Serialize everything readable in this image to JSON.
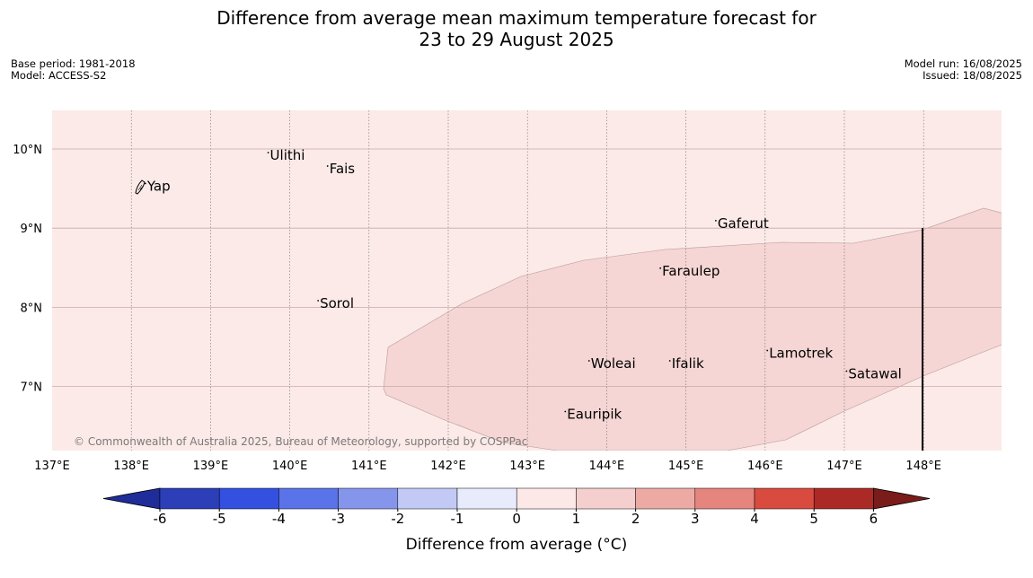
{
  "header": {
    "title_line1": "Difference from average mean maximum temperature forecast for",
    "title_line2": "23 to 29 August 2025"
  },
  "meta_left": {
    "base_period": "Base period: 1981-2018",
    "model": "Model: ACCESS-S2"
  },
  "meta_right": {
    "model_run": "Model run: 16/08/2025",
    "issued": "Issued: 18/08/2025"
  },
  "map": {
    "x_ticks": [
      "137°E",
      "138°E",
      "139°E",
      "140°E",
      "141°E",
      "142°E",
      "143°E",
      "144°E",
      "145°E",
      "146°E",
      "147°E",
      "148°E"
    ],
    "y_ticks": [
      "10°N",
      "9°N",
      "8°N",
      "7°N"
    ],
    "places": [
      {
        "name": "Yap",
        "lon": 138.2,
        "lat": 9.53
      },
      {
        "name": "Ulithi",
        "lon": 139.75,
        "lat": 9.92
      },
      {
        "name": "Fais",
        "lon": 140.5,
        "lat": 9.75
      },
      {
        "name": "Gaferut",
        "lon": 145.4,
        "lat": 9.06
      },
      {
        "name": "Faraulep",
        "lon": 144.7,
        "lat": 8.46
      },
      {
        "name": "Sorol",
        "lon": 140.38,
        "lat": 8.05
      },
      {
        "name": "Woleai",
        "lon": 143.8,
        "lat": 7.29
      },
      {
        "name": "Ifalik",
        "lon": 144.82,
        "lat": 7.29
      },
      {
        "name": "Lamotrek",
        "lon": 146.05,
        "lat": 7.42
      },
      {
        "name": "Satawal",
        "lon": 147.05,
        "lat": 7.16
      },
      {
        "name": "Eauripik",
        "lon": 143.5,
        "lat": 6.65
      }
    ],
    "copyright": "© Commonwealth of Australia 2025, Bureau of Meteorology, supported by COSPPac",
    "background_color": "#fbeae8",
    "anomaly_region_color": "#f5d6d4"
  },
  "colorbar": {
    "labels": [
      "-6",
      "-5",
      "-4",
      "-3",
      "-2",
      "-1",
      "0",
      "1",
      "2",
      "3",
      "4",
      "5",
      "6"
    ],
    "colors": [
      "#1f2d9a",
      "#2c3fb8",
      "#3350e0",
      "#5b73e8",
      "#8595ec",
      "#c2c9f5",
      "#e8ebfb",
      "#fce8e6",
      "#f4cfcd",
      "#edaaa5",
      "#e6847e",
      "#d94a3f",
      "#ac2a25",
      "#7a1c1a"
    ],
    "label": "Difference from average (°C)"
  }
}
